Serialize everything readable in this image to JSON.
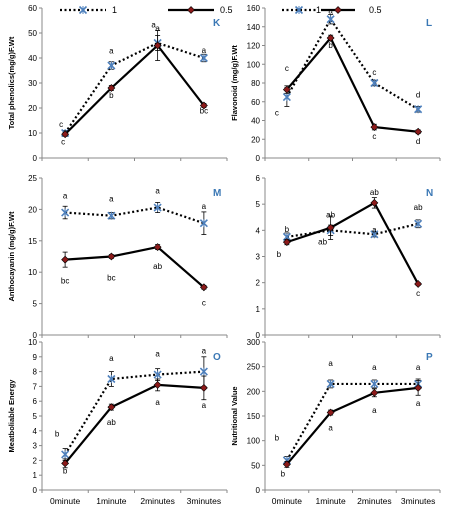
{
  "legend": [
    {
      "name": "1",
      "style": "dotted",
      "marker": "asterisk-x",
      "color": "#000000",
      "marker_color": "#4f81bd"
    },
    {
      "name": "0.5",
      "style": "solid",
      "marker": "diamond",
      "color": "#000000",
      "marker_color": "#8b1a1a"
    }
  ],
  "chart_data": [
    {
      "type": "line",
      "panel": "K",
      "ylabel": "Total phenolics(mg/g)F.Wt",
      "categories": [
        "0minute",
        "1minute",
        "2minutes",
        "3minutes"
      ],
      "ylim": [
        0,
        60
      ],
      "yticks": [
        0,
        10,
        20,
        30,
        40,
        50,
        60
      ],
      "series": [
        {
          "name": "1",
          "values": [
            10,
            37,
            46,
            40
          ],
          "errors": [
            1,
            1.5,
            3,
            1.5
          ],
          "letters": [
            "c",
            "a",
            "a",
            "a"
          ]
        },
        {
          "name": "0.5",
          "values": [
            9.5,
            28,
            45,
            21
          ],
          "errors": [
            0.8,
            1,
            6,
            0.8
          ],
          "letters": [
            "c",
            "b",
            "a",
            "bc"
          ]
        }
      ]
    },
    {
      "type": "line",
      "panel": "L",
      "ylabel": "Flavonoid (mg/g)F.Wt",
      "categories": [
        "0minute",
        "1minute",
        "2minutes",
        "3minutes"
      ],
      "ylim": [
        0,
        160
      ],
      "yticks": [
        0,
        20,
        40,
        60,
        80,
        100,
        120,
        140,
        160
      ],
      "series": [
        {
          "name": "1",
          "values": [
            65,
            148,
            80,
            52
          ],
          "errors": [
            10,
            5,
            3,
            3
          ],
          "letters": [
            "c",
            "a",
            "c",
            "d"
          ]
        },
        {
          "name": "0.5",
          "values": [
            73,
            128,
            33,
            28
          ],
          "errors": [
            4,
            3,
            3,
            2
          ],
          "letters": [
            "c",
            "b",
            "c",
            "d"
          ]
        }
      ]
    },
    {
      "type": "line",
      "panel": "M",
      "ylabel": "Anthocayanin (mg/g)F.Wt",
      "categories": [
        "0minute",
        "1minute",
        "2minutes",
        "3minutes"
      ],
      "ylim": [
        0,
        25
      ],
      "yticks": [
        0,
        5,
        10,
        15,
        20,
        25
      ],
      "series": [
        {
          "name": "1",
          "values": [
            19.5,
            19,
            20.3,
            17.8
          ],
          "errors": [
            1,
            0.5,
            0.8,
            1.8
          ],
          "letters": [
            "a",
            "a",
            "a",
            "a"
          ]
        },
        {
          "name": "0.5",
          "values": [
            12,
            12.5,
            14,
            7.6
          ],
          "errors": [
            1.2,
            0.3,
            0.4,
            0.3
          ],
          "letters": [
            "bc",
            "bc",
            "ab",
            "c"
          ]
        }
      ]
    },
    {
      "type": "line",
      "panel": "N",
      "ylabel": "",
      "categories": [
        "0minute",
        "1minute",
        "2minutes",
        "3minutes"
      ],
      "ylim": [
        0,
        6
      ],
      "yticks": [
        0,
        1,
        2,
        3,
        4,
        5,
        6
      ],
      "series": [
        {
          "name": "1",
          "values": [
            3.75,
            4,
            3.85,
            4.25
          ],
          "errors": [
            0.15,
            0.2,
            0.1,
            0.15
          ],
          "letters": [
            "b",
            "ab",
            "a",
            "ab"
          ]
        },
        {
          "name": "0.5",
          "values": [
            3.55,
            4.1,
            5.05,
            1.95
          ],
          "errors": [
            0.1,
            0.45,
            0.2,
            0.05
          ],
          "letters": [
            "b",
            "ab",
            "ab",
            "c"
          ]
        }
      ]
    },
    {
      "type": "line",
      "panel": "O",
      "ylabel": "Meatboliable Energy",
      "categories": [
        "0minute",
        "1minute",
        "2minutes",
        "3minutes"
      ],
      "ylim": [
        0,
        10
      ],
      "yticks": [
        0,
        1,
        2,
        3,
        4,
        5,
        6,
        7,
        8,
        9,
        10
      ],
      "series": [
        {
          "name": "1",
          "values": [
            2.4,
            7.5,
            7.8,
            8
          ],
          "errors": [
            0.4,
            0.5,
            0.4,
            1
          ],
          "letters": [
            "b",
            "a",
            "a",
            "a"
          ]
        },
        {
          "name": "0.5",
          "values": [
            1.8,
            5.6,
            7.1,
            6.9
          ],
          "errors": [
            0.3,
            0.2,
            0.4,
            0.8
          ],
          "letters": [
            "b",
            "ab",
            "a",
            "a"
          ]
        }
      ]
    },
    {
      "type": "line",
      "panel": "P",
      "ylabel": "Nutritional Value",
      "categories": [
        "0minute",
        "1minute",
        "2minutes",
        "3minutes"
      ],
      "ylim": [
        0,
        300
      ],
      "yticks": [
        0,
        50,
        100,
        150,
        200,
        250,
        300
      ],
      "series": [
        {
          "name": "1",
          "values": [
            60,
            215,
            215,
            215
          ],
          "errors": [
            8,
            8,
            8,
            10
          ],
          "letters": [
            "b",
            "a",
            "a",
            "a"
          ]
        },
        {
          "name": "0.5",
          "values": [
            52,
            157,
            197,
            207
          ],
          "errors": [
            6,
            5,
            8,
            15
          ],
          "letters": [
            "b",
            "a",
            "a",
            "a"
          ]
        }
      ]
    }
  ]
}
